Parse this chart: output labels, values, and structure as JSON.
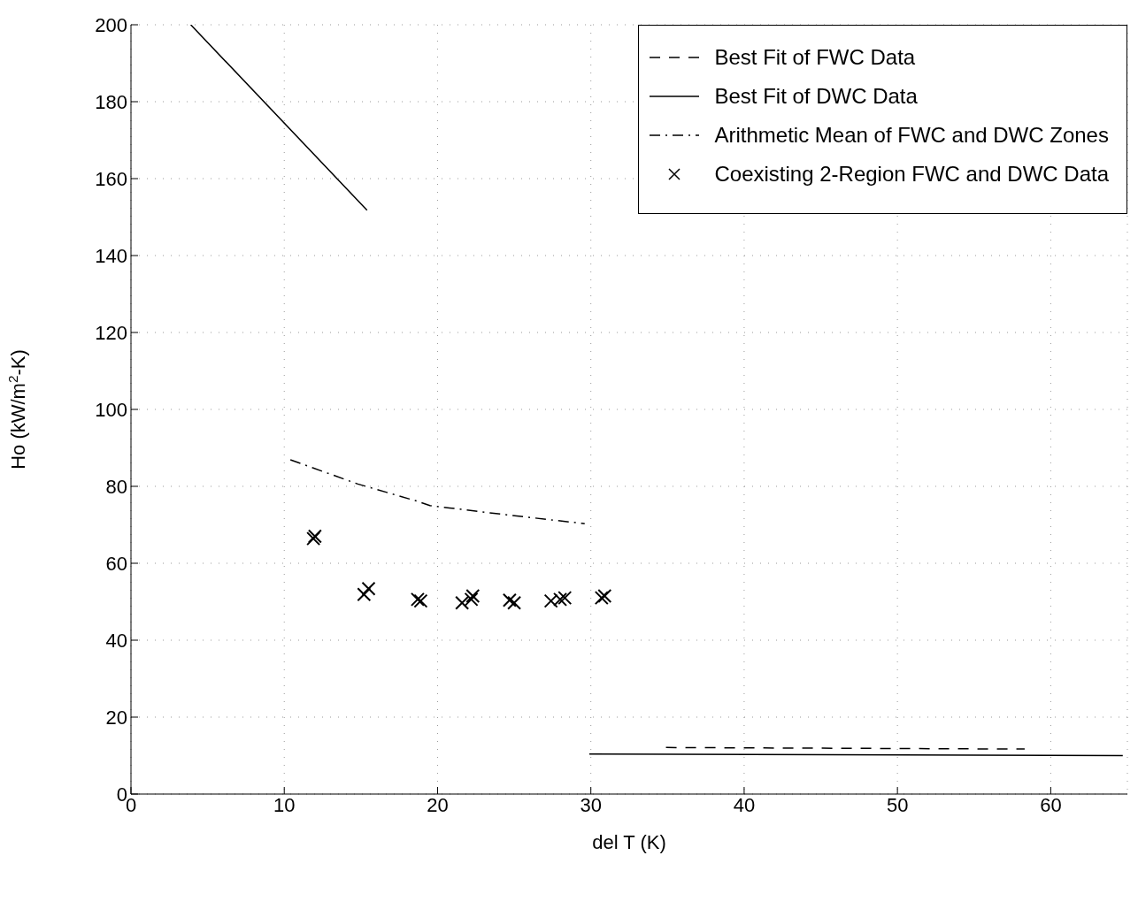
{
  "chart_data": {
    "type": "line",
    "xlabel": "del T (K)",
    "ylabel": "Ho (kW/m$^{2}$-K)",
    "xlim": [
      0,
      65
    ],
    "xticks": [
      0,
      10,
      20,
      30,
      40,
      50,
      60
    ],
    "ylim": [
      0,
      200
    ],
    "yticks": [
      0,
      20,
      40,
      60,
      80,
      100,
      120,
      140,
      160,
      180,
      200
    ],
    "grid": true,
    "legend": "top right",
    "series": [
      {
        "name": "Best Fit of FWC Data",
        "color": "#000000",
        "line_style": "dashed",
        "marker": "none",
        "x": [
          34.9,
          58.3
        ],
        "values": [
          12.1,
          11.7
        ]
      },
      {
        "name": "Best Fit of DWC Data",
        "color": "#000000",
        "line_style": "solid",
        "marker": "none",
        "x": [
          3.9,
          15.4,
          22,
          29.9,
          64.7
        ],
        "values": [
          200,
          151.8,
          null,
          10.4,
          10
        ]
      },
      {
        "name": "Arithmetic Mean of FWC and DWC Zones",
        "color": "#000000",
        "line_style": "dashdot",
        "marker": "none",
        "x": [
          10.4,
          14.8,
          18.7,
          19.5,
          24.5,
          29.6
        ],
        "values": [
          86.9,
          80.6,
          76.1,
          75,
          72.6,
          70.3
        ]
      },
      {
        "name": "Coexisting 2-Region FWC and DWC Data",
        "type": "scatter",
        "color": "#000000",
        "marker": "cross",
        "x": [
          11.9,
          12,
          15.2,
          15.5,
          18.7,
          18.9,
          21.6,
          22.2,
          22.3,
          24.7,
          25,
          27.4,
          28,
          28.3,
          30.7,
          30.9
        ],
        "values": [
          66.4,
          67,
          51.9,
          53.4,
          50.6,
          50.2,
          49.7,
          50.6,
          51.5,
          50.4,
          49.7,
          50.2,
          50.6,
          51,
          51,
          51.5
        ]
      }
    ]
  }
}
